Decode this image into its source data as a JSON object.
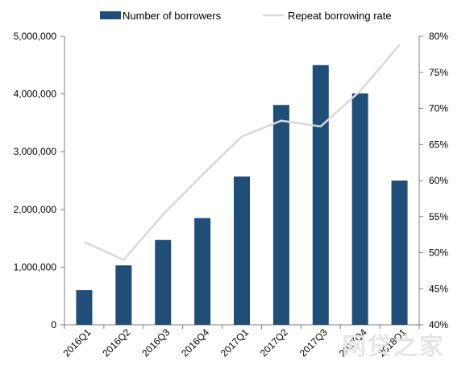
{
  "chart_data": {
    "type": "bar",
    "categories": [
      "2016Q1",
      "2016Q2",
      "2016Q3",
      "2016Q4",
      "2017Q1",
      "2017Q2",
      "2017Q3",
      "2017Q4",
      "2018Q1"
    ],
    "series": [
      {
        "name": "Number of borrowers",
        "type": "bar",
        "axis": "left",
        "values": [
          600000,
          1030000,
          1470000,
          1850000,
          2570000,
          3810000,
          4500000,
          4010000,
          2500000
        ]
      },
      {
        "name": "Repeat borrowing rate",
        "type": "line",
        "axis": "right",
        "values": [
          0.515,
          0.49,
          0.553,
          0.608,
          0.661,
          0.683,
          0.675,
          0.724,
          0.788
        ]
      }
    ],
    "legend": [
      "Number of borrowers",
      "Repeat borrowing rate"
    ],
    "legend_position": "top",
    "y_left": {
      "ylim": [
        0,
        5000000
      ],
      "ticks": [
        0,
        1000000,
        2000000,
        3000000,
        4000000,
        5000000
      ],
      "tick_labels": [
        "0",
        "1,000,000",
        "2,000,000",
        "3,000,000",
        "4,000,000",
        "5,000,000"
      ]
    },
    "y_right": {
      "ylim": [
        0.4,
        0.8
      ],
      "ticks": [
        0.4,
        0.45,
        0.5,
        0.55,
        0.6,
        0.65,
        0.7,
        0.75,
        0.8
      ],
      "tick_labels": [
        "40%",
        "45%",
        "50%",
        "55%",
        "60%",
        "65%",
        "70%",
        "75%",
        "80%"
      ]
    },
    "grid": false,
    "title": "",
    "xlabel": "",
    "ylabel": ""
  },
  "colors": {
    "bar": "#1f4e79",
    "line": "#d9d9d9",
    "axis": "#7f7f7f",
    "text": "#000000"
  },
  "watermark": {
    "text": "网贷之家"
  }
}
